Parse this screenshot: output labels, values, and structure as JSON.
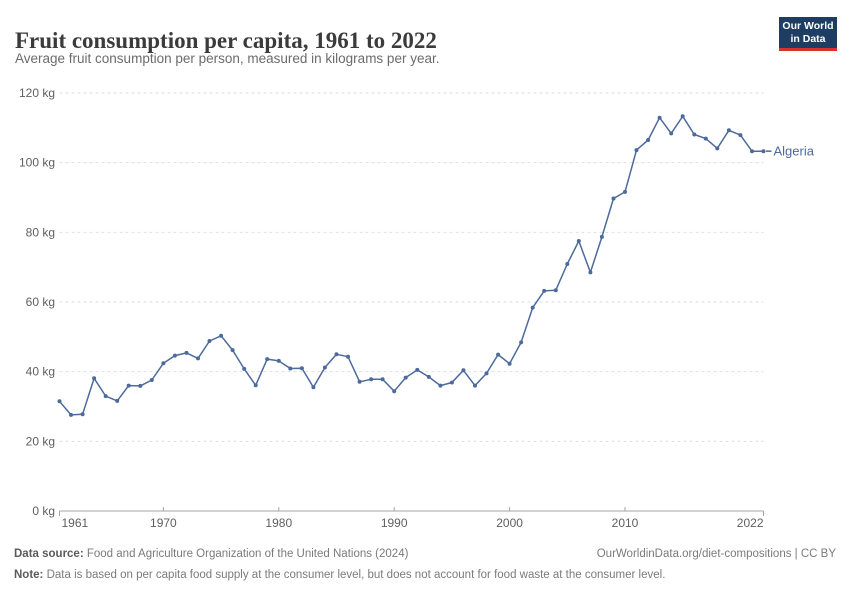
{
  "header": {
    "title": "Fruit consumption per capita, 1961 to 2022",
    "subtitle": "Average fruit consumption per person, measured in kilograms per year.",
    "logo": {
      "line1": "Our World",
      "line2": "in Data",
      "bg_color": "#1d3d63",
      "accent_color": "#d4342c"
    }
  },
  "chart_data": {
    "type": "line",
    "title": "Fruit consumption per capita, 1961 to 2022",
    "xlabel": "",
    "ylabel": "kilograms per year",
    "xlim": [
      1961,
      2022
    ],
    "ylim": [
      0,
      120
    ],
    "xticks": [
      1961,
      1970,
      1980,
      1990,
      2000,
      2010,
      2022
    ],
    "yticks": [
      0,
      20,
      40,
      60,
      80,
      100,
      120
    ],
    "ytick_suffix": " kg",
    "grid": true,
    "legend_position": "end-of-line",
    "axis_color": "#a5a5a5",
    "grid_color": "#dedede",
    "tick_label_color": "#5f5f5f",
    "series": [
      {
        "name": "Algeria",
        "color": "#4C6A9C",
        "x": [
          1961,
          1962,
          1963,
          1964,
          1965,
          1966,
          1967,
          1968,
          1969,
          1970,
          1971,
          1972,
          1973,
          1974,
          1975,
          1976,
          1977,
          1978,
          1979,
          1980,
          1981,
          1982,
          1983,
          1984,
          1985,
          1986,
          1987,
          1988,
          1989,
          1990,
          1991,
          1992,
          1993,
          1994,
          1995,
          1996,
          1997,
          1998,
          1999,
          2000,
          2001,
          2002,
          2003,
          2004,
          2005,
          2006,
          2007,
          2008,
          2009,
          2010,
          2011,
          2012,
          2013,
          2014,
          2015,
          2016,
          2017,
          2018,
          2019,
          2020,
          2021,
          2022
        ],
        "values": [
          31.5,
          27.6,
          27.8,
          38.1,
          33.0,
          31.6,
          36.0,
          35.9,
          37.6,
          42.4,
          44.6,
          45.4,
          43.8,
          48.8,
          50.3,
          46.2,
          40.8,
          36.1,
          43.6,
          43.1,
          40.9,
          41.0,
          35.5,
          41.2,
          45.0,
          44.3,
          37.1,
          37.8,
          37.8,
          34.4,
          38.3,
          40.5,
          38.5,
          36.0,
          36.9,
          40.4,
          36.0,
          39.5,
          44.9,
          42.3,
          48.4,
          58.4,
          63.2,
          63.4,
          70.9,
          77.5,
          68.5,
          78.7,
          89.7,
          91.6,
          103.6,
          106.5,
          112.9,
          108.4,
          113.3,
          108.1,
          106.9,
          104.1,
          109.3,
          107.9,
          103.3,
          103.3
        ]
      }
    ]
  },
  "footer": {
    "source_label": "Data source:",
    "source_text": " Food and Agriculture Organization of the United Nations (2024)",
    "link_text": "OurWorldinData.org/diet-compositions | CC BY",
    "note_label": "Note:",
    "note_text": " Data is based on per capita food supply at the consumer level, but does not account for food waste at the consumer level."
  }
}
